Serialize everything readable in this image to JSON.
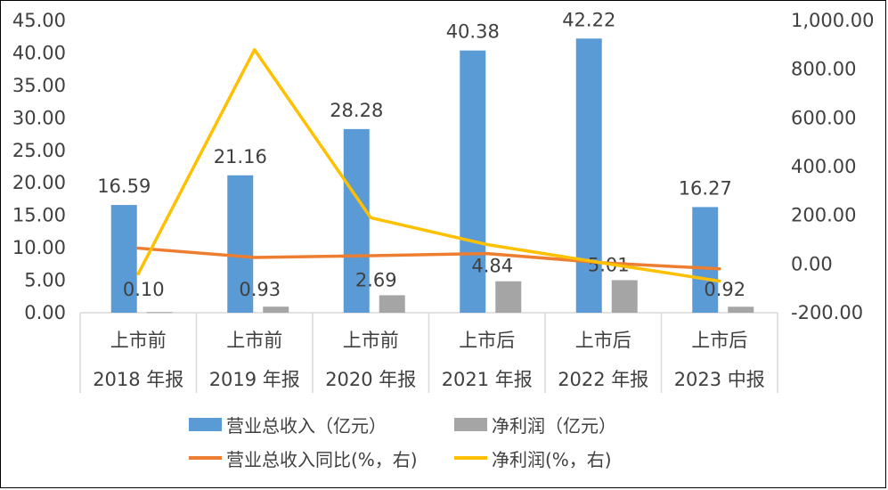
{
  "chart_data": {
    "type": "bar",
    "categories": [
      [
        "上市前",
        "2018 年报"
      ],
      [
        "上市前",
        "2019 年报"
      ],
      [
        "上市前",
        "2020 年报"
      ],
      [
        "上市后",
        "2021 年报"
      ],
      [
        "上市后",
        "2022 年报"
      ],
      [
        "上市后",
        "2023 中报"
      ]
    ],
    "series": [
      {
        "name": "营业总收入（亿元）",
        "type": "bar",
        "axis": "left",
        "color": "#5B9BD5",
        "values": [
          16.59,
          21.16,
          28.28,
          40.38,
          42.22,
          16.27
        ],
        "labels": [
          "16.59",
          "21.16",
          "28.28",
          "40.38",
          "42.22",
          "16.27"
        ]
      },
      {
        "name": "净利润（亿元）",
        "type": "bar",
        "axis": "left",
        "color": "#A5A5A5",
        "values": [
          0.1,
          0.93,
          2.69,
          4.84,
          5.01,
          0.92
        ],
        "labels": [
          "0.10",
          "0.93",
          "2.69",
          "4.84",
          "5.01",
          "0.92"
        ]
      },
      {
        "name": "营业总收入同比(%，右)",
        "type": "line",
        "axis": "right",
        "color": "#ED7D31",
        "values": [
          65,
          27,
          34,
          43,
          5,
          -20
        ]
      },
      {
        "name": "净利润(%，右)",
        "type": "line",
        "axis": "right",
        "color": "#FFC000",
        "values": [
          -40,
          880,
          190,
          80,
          4,
          -70
        ]
      }
    ],
    "y_left": {
      "min": 0,
      "max": 45,
      "ticks": [
        "0.00",
        "5.00",
        "10.00",
        "15.00",
        "20.00",
        "25.00",
        "30.00",
        "35.00",
        "40.00",
        "45.00"
      ]
    },
    "y_right": {
      "min": -200,
      "max": 1000,
      "ticks": [
        "-200.00",
        "0.00",
        "200.00",
        "400.00",
        "600.00",
        "800.00",
        "1,000.00"
      ]
    },
    "grid": false,
    "legend_position": "bottom"
  }
}
